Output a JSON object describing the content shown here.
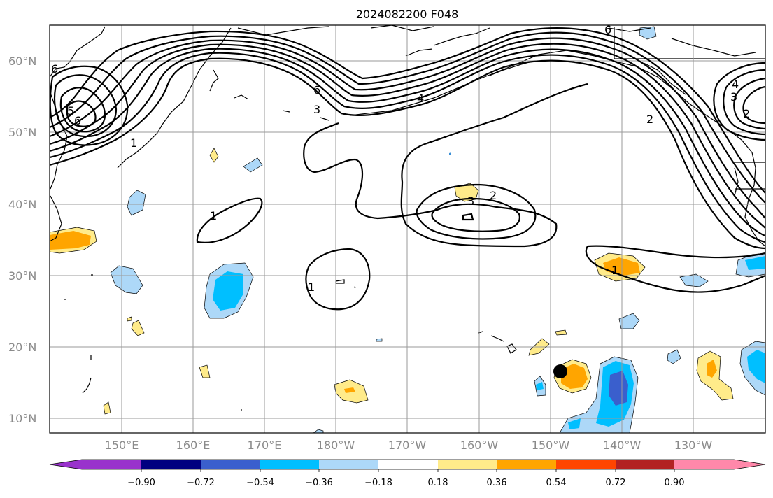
{
  "title": "2024082200 F048",
  "latitude_labels": [
    "60°N",
    "50°N",
    "40°N",
    "30°N",
    "20°N",
    "10°N"
  ],
  "longitude_labels": [
    "150°E",
    "160°E",
    "170°E",
    "180°W",
    "170°W",
    "160°W",
    "150°W",
    "140°W",
    "130°W"
  ],
  "colorbar": {
    "colors": [
      "#9932cc",
      "#000080",
      "#3a5fcd",
      "#00bfff",
      "#add8f8",
      "#ffffff",
      "#ffeb8a",
      "#ffa500",
      "#ff4500",
      "#b22222",
      "#ff88aa"
    ],
    "tick_labels": [
      "−0.90",
      "−0.72",
      "−0.54",
      "−0.36",
      "−0.18",
      "0.18",
      "0.36",
      "0.54",
      "0.72",
      "0.90"
    ]
  },
  "contour_labels": [
    {
      "id": "nw-6",
      "text": "6"
    },
    {
      "id": "nw-5",
      "text": "5"
    },
    {
      "id": "nw-6b",
      "text": "6"
    },
    {
      "id": "nw-1",
      "text": "1"
    },
    {
      "id": "jet-6",
      "text": "6"
    },
    {
      "id": "jet-3",
      "text": "3"
    },
    {
      "id": "jet-4",
      "text": "4"
    },
    {
      "id": "low-2",
      "text": "2"
    },
    {
      "id": "low-3",
      "text": "3"
    },
    {
      "id": "w-1",
      "text": "1"
    },
    {
      "id": "c-1",
      "text": "1"
    },
    {
      "id": "e-1",
      "text": "1"
    },
    {
      "id": "e-2",
      "text": "2"
    },
    {
      "id": "ne-4",
      "text": "4"
    },
    {
      "id": "ne-3",
      "text": "3"
    },
    {
      "id": "ne-2",
      "text": "2"
    },
    {
      "id": "top-6",
      "text": "6"
    }
  ],
  "marker": {
    "type": "filled-circle",
    "color": "#000000"
  }
}
